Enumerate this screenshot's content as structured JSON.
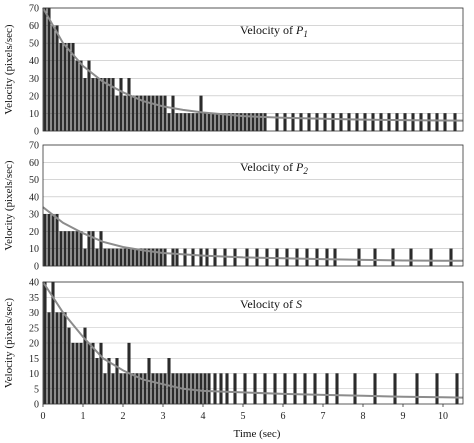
{
  "chart_data": {
    "type": "bar",
    "xlabel": "Time (sec)",
    "x_ticks": [
      "0",
      "1",
      "2",
      "3",
      "4",
      "5",
      "6",
      "7",
      "8",
      "9",
      "10"
    ],
    "xlim": [
      0,
      10.5
    ],
    "grid": true,
    "panels": [
      {
        "title": "Velocity of ",
        "title_symbol": "P",
        "title_sub": "1",
        "ylabel": "Velocity (pixels/sec)",
        "ylim": [
          0,
          70
        ],
        "y_ticks": [
          "0",
          "10",
          "20",
          "30",
          "40",
          "50",
          "60",
          "70"
        ],
        "bar_width": 0.07,
        "bars": [
          [
            0.05,
            70
          ],
          [
            0.15,
            70
          ],
          [
            0.25,
            60
          ],
          [
            0.35,
            60
          ],
          [
            0.45,
            50
          ],
          [
            0.55,
            50
          ],
          [
            0.65,
            50
          ],
          [
            0.75,
            50
          ],
          [
            0.85,
            40
          ],
          [
            0.95,
            40
          ],
          [
            1.05,
            30
          ],
          [
            1.15,
            40
          ],
          [
            1.25,
            30
          ],
          [
            1.35,
            30
          ],
          [
            1.45,
            30
          ],
          [
            1.55,
            30
          ],
          [
            1.65,
            30
          ],
          [
            1.75,
            30
          ],
          [
            1.85,
            20
          ],
          [
            1.95,
            30
          ],
          [
            2.05,
            20
          ],
          [
            2.15,
            30
          ],
          [
            2.25,
            20
          ],
          [
            2.35,
            20
          ],
          [
            2.45,
            20
          ],
          [
            2.55,
            20
          ],
          [
            2.65,
            20
          ],
          [
            2.75,
            20
          ],
          [
            2.85,
            20
          ],
          [
            2.95,
            20
          ],
          [
            3.05,
            20
          ],
          [
            3.15,
            10
          ],
          [
            3.25,
            20
          ],
          [
            3.35,
            10
          ],
          [
            3.45,
            10
          ],
          [
            3.55,
            10
          ],
          [
            3.65,
            10
          ],
          [
            3.75,
            10
          ],
          [
            3.85,
            10
          ],
          [
            3.95,
            20
          ],
          [
            4.05,
            10
          ],
          [
            4.15,
            10
          ],
          [
            4.25,
            10
          ],
          [
            4.35,
            10
          ],
          [
            4.45,
            10
          ],
          [
            4.55,
            10
          ],
          [
            4.65,
            10
          ],
          [
            4.75,
            10
          ],
          [
            4.85,
            10
          ],
          [
            4.95,
            10
          ],
          [
            5.05,
            10
          ],
          [
            5.15,
            10
          ],
          [
            5.25,
            10
          ],
          [
            5.35,
            10
          ],
          [
            5.45,
            10
          ],
          [
            5.55,
            10
          ],
          [
            5.85,
            10
          ],
          [
            6.05,
            10
          ],
          [
            6.25,
            10
          ],
          [
            6.45,
            10
          ],
          [
            6.65,
            10
          ],
          [
            6.85,
            10
          ],
          [
            7.05,
            10
          ],
          [
            7.25,
            10
          ],
          [
            7.45,
            10
          ],
          [
            7.65,
            10
          ],
          [
            7.85,
            10
          ],
          [
            8.05,
            10
          ],
          [
            8.25,
            10
          ],
          [
            8.45,
            10
          ],
          [
            8.65,
            10
          ],
          [
            8.85,
            10
          ],
          [
            9.05,
            10
          ],
          [
            9.25,
            10
          ],
          [
            9.45,
            10
          ],
          [
            9.65,
            10
          ],
          [
            9.85,
            10
          ],
          [
            10.05,
            10
          ],
          [
            10.3,
            10
          ]
        ],
        "fit": [
          [
            0,
            70
          ],
          [
            0.5,
            50
          ],
          [
            1,
            37
          ],
          [
            1.5,
            28
          ],
          [
            2,
            22
          ],
          [
            2.5,
            17
          ],
          [
            3,
            14
          ],
          [
            3.5,
            12
          ],
          [
            4,
            10.5
          ],
          [
            4.5,
            9.5
          ],
          [
            5,
            8.5
          ],
          [
            6,
            7.5
          ],
          [
            7,
            7
          ],
          [
            8,
            6.5
          ],
          [
            9,
            6.2
          ],
          [
            10,
            6
          ],
          [
            10.5,
            5.9
          ]
        ]
      },
      {
        "title": "Velocity of ",
        "title_symbol": "P",
        "title_sub": "2",
        "ylabel": "Velocity (pixels/sec)",
        "ylim": [
          0,
          70
        ],
        "y_ticks": [
          "0",
          "10",
          "20",
          "30",
          "40",
          "50",
          "60",
          "70"
        ],
        "bar_width": 0.07,
        "bars": [
          [
            0.05,
            30
          ],
          [
            0.15,
            30
          ],
          [
            0.25,
            30
          ],
          [
            0.35,
            30
          ],
          [
            0.45,
            20
          ],
          [
            0.55,
            20
          ],
          [
            0.65,
            20
          ],
          [
            0.75,
            20
          ],
          [
            0.85,
            20
          ],
          [
            0.95,
            20
          ],
          [
            1.05,
            10
          ],
          [
            1.15,
            20
          ],
          [
            1.25,
            20
          ],
          [
            1.35,
            10
          ],
          [
            1.45,
            20
          ],
          [
            1.55,
            10
          ],
          [
            1.65,
            10
          ],
          [
            1.75,
            10
          ],
          [
            1.85,
            10
          ],
          [
            1.95,
            10
          ],
          [
            2.05,
            10
          ],
          [
            2.15,
            10
          ],
          [
            2.25,
            10
          ],
          [
            2.35,
            10
          ],
          [
            2.45,
            10
          ],
          [
            2.55,
            10
          ],
          [
            2.65,
            10
          ],
          [
            2.75,
            10
          ],
          [
            2.85,
            10
          ],
          [
            2.95,
            10
          ],
          [
            3.05,
            10
          ],
          [
            3.25,
            10
          ],
          [
            3.35,
            10
          ],
          [
            3.55,
            10
          ],
          [
            3.75,
            10
          ],
          [
            3.95,
            10
          ],
          [
            4.1,
            10
          ],
          [
            4.3,
            10
          ],
          [
            4.55,
            10
          ],
          [
            4.8,
            10
          ],
          [
            5.1,
            10
          ],
          [
            5.35,
            10
          ],
          [
            5.6,
            10
          ],
          [
            5.85,
            10
          ],
          [
            6.1,
            10
          ],
          [
            6.35,
            10
          ],
          [
            6.6,
            10
          ],
          [
            6.85,
            10
          ],
          [
            7.1,
            10
          ],
          [
            7.3,
            10
          ],
          [
            7.9,
            10
          ],
          [
            8.3,
            10
          ],
          [
            8.75,
            10
          ],
          [
            9.2,
            10
          ],
          [
            9.7,
            10
          ],
          [
            10.2,
            10
          ]
        ],
        "fit": [
          [
            0,
            34
          ],
          [
            0.5,
            25
          ],
          [
            1,
            19
          ],
          [
            1.5,
            14
          ],
          [
            2,
            11
          ],
          [
            2.5,
            9
          ],
          [
            3,
            7.5
          ],
          [
            4,
            6
          ],
          [
            5,
            5
          ],
          [
            6,
            4.5
          ],
          [
            7,
            4
          ],
          [
            8,
            3.5
          ],
          [
            9,
            3.2
          ],
          [
            10,
            3
          ],
          [
            10.5,
            3
          ]
        ]
      },
      {
        "title": "Velocity of ",
        "title_symbol": "S",
        "title_sub": "",
        "ylabel": "Velocity (pixels/sec)",
        "ylim": [
          0,
          40
        ],
        "y_ticks": [
          "0",
          "5",
          "10",
          "15",
          "20",
          "25",
          "30",
          "35",
          "40"
        ],
        "bar_width": 0.07,
        "bars": [
          [
            0.05,
            40
          ],
          [
            0.15,
            30
          ],
          [
            0.25,
            40
          ],
          [
            0.35,
            30
          ],
          [
            0.45,
            30
          ],
          [
            0.55,
            30
          ],
          [
            0.65,
            25
          ],
          [
            0.75,
            20
          ],
          [
            0.85,
            20
          ],
          [
            0.95,
            20
          ],
          [
            1.05,
            25
          ],
          [
            1.15,
            20
          ],
          [
            1.25,
            20
          ],
          [
            1.35,
            15
          ],
          [
            1.45,
            20
          ],
          [
            1.55,
            10
          ],
          [
            1.65,
            15
          ],
          [
            1.75,
            10
          ],
          [
            1.85,
            15
          ],
          [
            1.95,
            10
          ],
          [
            2.05,
            10
          ],
          [
            2.15,
            20
          ],
          [
            2.25,
            10
          ],
          [
            2.35,
            10
          ],
          [
            2.45,
            10
          ],
          [
            2.55,
            10
          ],
          [
            2.65,
            15
          ],
          [
            2.75,
            10
          ],
          [
            2.85,
            10
          ],
          [
            2.95,
            10
          ],
          [
            3.05,
            10
          ],
          [
            3.15,
            15
          ],
          [
            3.25,
            10
          ],
          [
            3.35,
            10
          ],
          [
            3.45,
            10
          ],
          [
            3.55,
            10
          ],
          [
            3.65,
            10
          ],
          [
            3.75,
            10
          ],
          [
            3.85,
            10
          ],
          [
            3.95,
            10
          ],
          [
            4.05,
            10
          ],
          [
            4.15,
            10
          ],
          [
            4.3,
            10
          ],
          [
            4.45,
            10
          ],
          [
            4.6,
            10
          ],
          [
            4.8,
            10
          ],
          [
            5.05,
            10
          ],
          [
            5.3,
            10
          ],
          [
            5.55,
            10
          ],
          [
            5.8,
            10
          ],
          [
            6.05,
            10
          ],
          [
            6.3,
            10
          ],
          [
            6.55,
            10
          ],
          [
            6.8,
            10
          ],
          [
            7.1,
            10
          ],
          [
            7.35,
            10
          ],
          [
            7.8,
            10
          ],
          [
            8.3,
            10
          ],
          [
            8.8,
            10
          ],
          [
            9.35,
            10
          ],
          [
            9.85,
            10
          ],
          [
            10.35,
            10
          ]
        ],
        "fit": [
          [
            0,
            40
          ],
          [
            0.5,
            30
          ],
          [
            1,
            22
          ],
          [
            1.5,
            15
          ],
          [
            2,
            11
          ],
          [
            2.5,
            8
          ],
          [
            3,
            6.5
          ],
          [
            3.5,
            5
          ],
          [
            4,
            4.3
          ],
          [
            5,
            3.8
          ],
          [
            6,
            3.3
          ],
          [
            7,
            3
          ],
          [
            8,
            2.7
          ],
          [
            9,
            2.4
          ],
          [
            10,
            2.2
          ],
          [
            10.5,
            2.1
          ]
        ]
      }
    ]
  }
}
